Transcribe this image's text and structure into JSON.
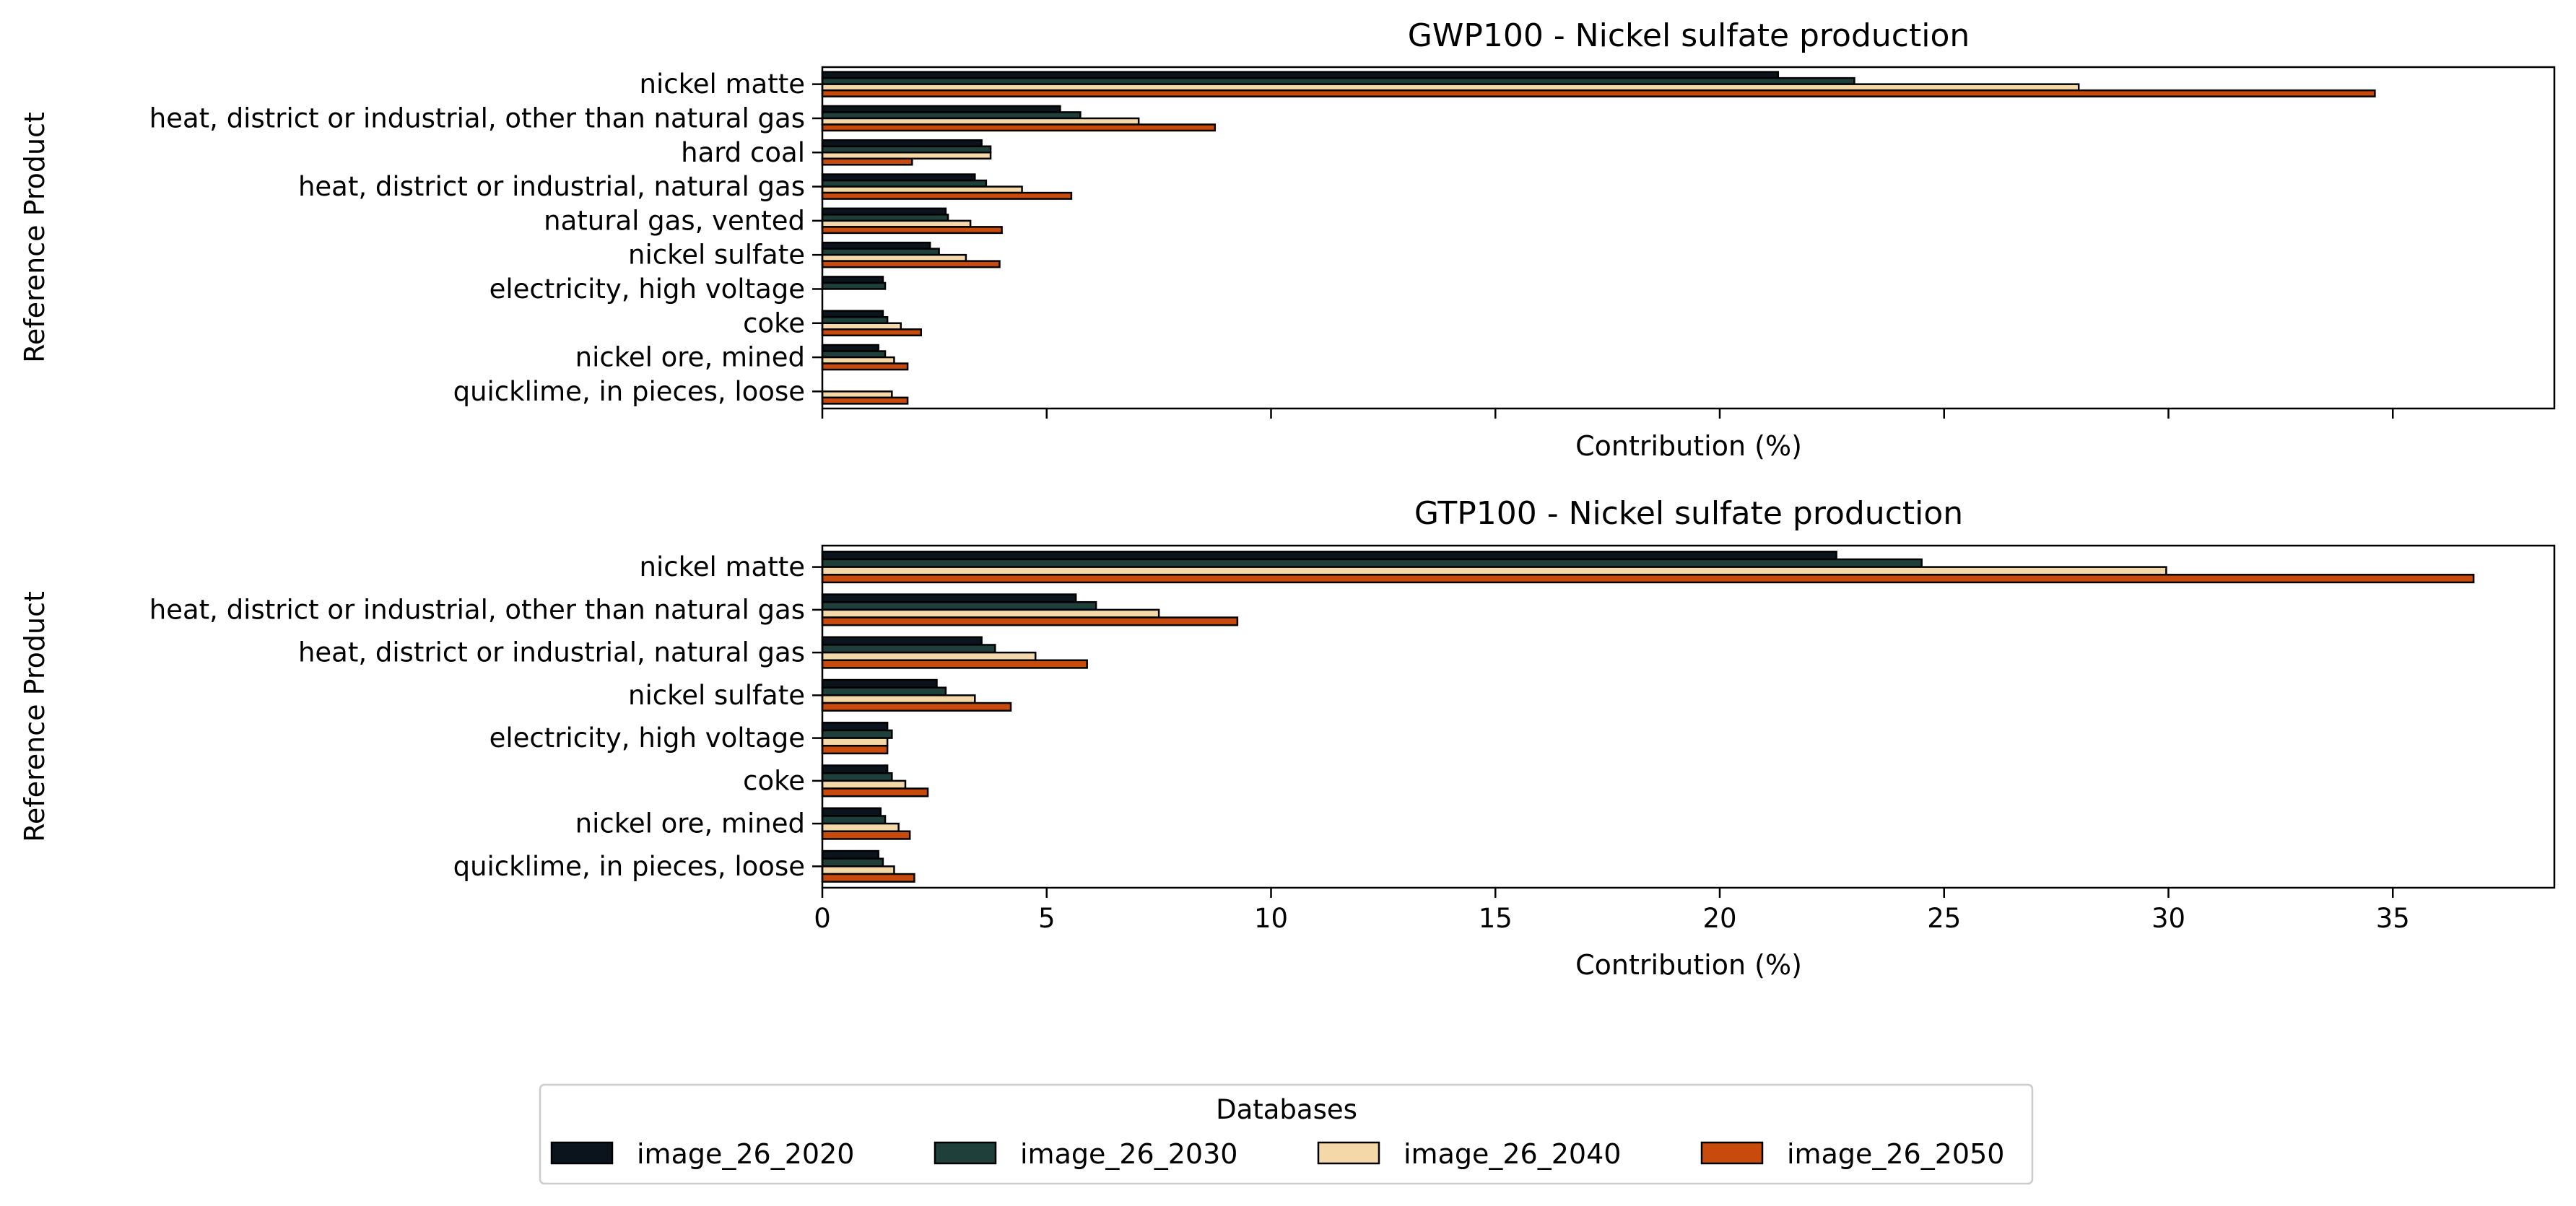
{
  "colors": {
    "image_26_2020": "#0b141d",
    "image_26_2030": "#1f3f3b",
    "image_26_2040": "#f4d8a8",
    "image_26_2050": "#c84a0c"
  },
  "chart_data": [
    {
      "type": "bar",
      "orientation": "horizontal",
      "title": "GWP100 - Nickel sulfate production",
      "xlabel": "Contribution (%)",
      "ylabel": "Reference Product",
      "xlim": [
        0,
        38.6
      ],
      "xticks": [
        0,
        5,
        10,
        15,
        20,
        25,
        30,
        35
      ],
      "show_xtick_labels": false,
      "grid": false,
      "categories": [
        "nickel matte",
        "heat, district or industrial, other than natural gas",
        "hard coal",
        "heat, district or industrial, natural gas",
        "natural gas, vented",
        "nickel sulfate",
        "electricity, high voltage",
        "coke",
        "nickel ore, mined",
        "quicklime, in pieces, loose"
      ],
      "series": [
        {
          "name": "image_26_2020",
          "values": [
            21.3,
            5.3,
            3.55,
            3.4,
            2.75,
            2.4,
            1.35,
            1.35,
            1.25,
            0
          ]
        },
        {
          "name": "image_26_2030",
          "values": [
            23.0,
            5.75,
            3.75,
            3.65,
            2.8,
            2.6,
            1.4,
            1.45,
            1.4,
            0
          ]
        },
        {
          "name": "image_26_2040",
          "values": [
            28.0,
            7.05,
            3.75,
            4.45,
            3.3,
            3.2,
            0,
            1.75,
            1.6,
            1.55
          ]
        },
        {
          "name": "image_26_2050",
          "values": [
            34.6,
            8.75,
            2.0,
            5.55,
            4.0,
            3.95,
            0,
            2.2,
            1.9,
            1.9
          ]
        }
      ]
    },
    {
      "type": "bar",
      "orientation": "horizontal",
      "title": "GTP100 - Nickel sulfate production",
      "xlabel": "Contribution (%)",
      "ylabel": "Reference Product",
      "xlim": [
        0,
        38.6
      ],
      "xticks": [
        0,
        5,
        10,
        15,
        20,
        25,
        30,
        35
      ],
      "show_xtick_labels": true,
      "grid": false,
      "categories": [
        "nickel matte",
        "heat, district or industrial, other than natural gas",
        "heat, district or industrial, natural gas",
        "nickel sulfate",
        "electricity, high voltage",
        "coke",
        "nickel ore, mined",
        "quicklime, in pieces, loose"
      ],
      "series": [
        {
          "name": "image_26_2020",
          "values": [
            22.6,
            5.65,
            3.55,
            2.55,
            1.45,
            1.45,
            1.3,
            1.25
          ]
        },
        {
          "name": "image_26_2030",
          "values": [
            24.5,
            6.1,
            3.85,
            2.75,
            1.55,
            1.55,
            1.4,
            1.35
          ]
        },
        {
          "name": "image_26_2040",
          "values": [
            29.95,
            7.5,
            4.75,
            3.4,
            1.45,
            1.85,
            1.7,
            1.6
          ]
        },
        {
          "name": "image_26_2050",
          "values": [
            36.8,
            9.25,
            5.9,
            4.2,
            1.45,
            2.35,
            1.95,
            2.05
          ]
        }
      ]
    }
  ],
  "legend": {
    "title": "Databases",
    "placement": "bottom-center",
    "entries": [
      "image_26_2020",
      "image_26_2030",
      "image_26_2040",
      "image_26_2050"
    ]
  }
}
